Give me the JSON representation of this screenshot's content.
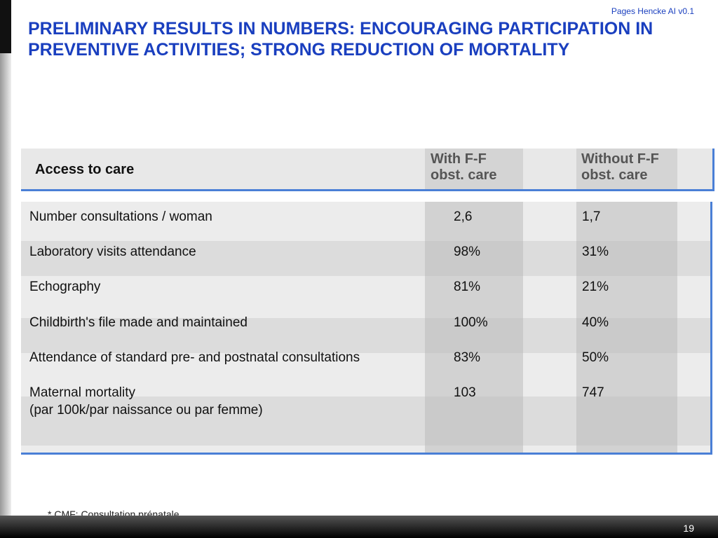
{
  "header": {
    "stamp": "Pages Hencke AI v0.1",
    "title": "PRELIMINARY RESULTS IN NUMBERS: ENCOURAGING PARTICIPATION IN PREVENTIVE ACTIVITIES; STRONG REDUCTION OF MORTALITY"
  },
  "table": {
    "columns": [
      "Access to care",
      "With F-F obst. care",
      "Without F-F obst. care"
    ],
    "rows": [
      [
        "Number consultations / woman",
        "2,6",
        "1,7"
      ],
      [
        "Laboratory visits attendance",
        "98%",
        "31%"
      ],
      [
        "Echography",
        "81%",
        "21%"
      ],
      [
        "Childbirth's file made and maintained",
        "100%",
        "40%"
      ],
      [
        "Attendance of standard pre- and postnatal consultations",
        "83%",
        "50%"
      ],
      [
        "Maternal mortality\n(par 100k/par naissance ou par femme)",
        "103",
        "747"
      ]
    ]
  },
  "footer": {
    "note": "* CMF: Consultation prénatale",
    "page": "19"
  }
}
